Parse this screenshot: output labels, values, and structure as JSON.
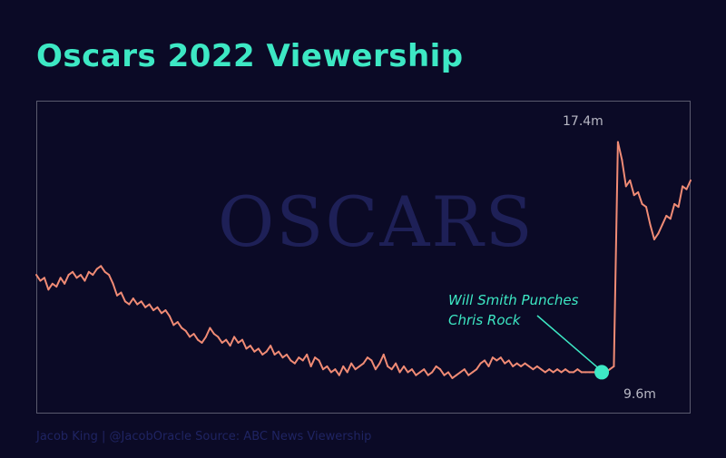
{
  "title": "Oscars 2022 Viewership",
  "watermark": "OSCARS",
  "footer": "Jacob King | @JacobOracle  Source: ABC News Viewership",
  "colors": {
    "background": "#0b0a26",
    "title": "#3de8c4",
    "line": "#f08b75",
    "annotation": "#3de8c4",
    "frame": "#5a5a6e"
  },
  "chart_data": {
    "type": "line",
    "title": "Oscars 2022 Viewership",
    "xlabel": "",
    "ylabel": "",
    "grid": false,
    "legend": "none",
    "ylim": [
      8.2,
      18.8
    ],
    "labels": {
      "max": "17.4m",
      "min": "9.6m"
    },
    "annotation": {
      "lines": [
        "Will Smith Punches",
        "Chris Rock"
      ],
      "point_index": 140
    },
    "values": [
      12.9,
      12.7,
      12.8,
      12.4,
      12.6,
      12.5,
      12.8,
      12.6,
      12.9,
      13.0,
      12.8,
      12.9,
      12.7,
      13.0,
      12.9,
      13.1,
      13.2,
      13.0,
      12.9,
      12.6,
      12.2,
      12.3,
      12.0,
      11.9,
      12.1,
      11.9,
      12.0,
      11.8,
      11.9,
      11.7,
      11.8,
      11.6,
      11.7,
      11.5,
      11.2,
      11.3,
      11.1,
      11.0,
      10.8,
      10.9,
      10.7,
      10.6,
      10.8,
      11.1,
      10.9,
      10.8,
      10.6,
      10.7,
      10.5,
      10.8,
      10.6,
      10.7,
      10.4,
      10.5,
      10.3,
      10.4,
      10.2,
      10.3,
      10.5,
      10.2,
      10.3,
      10.1,
      10.2,
      10.0,
      9.9,
      10.1,
      10.0,
      10.2,
      9.8,
      10.1,
      10.0,
      9.7,
      9.8,
      9.6,
      9.7,
      9.5,
      9.8,
      9.6,
      9.9,
      9.7,
      9.8,
      9.9,
      10.1,
      10.0,
      9.7,
      9.9,
      10.2,
      9.8,
      9.7,
      9.9,
      9.6,
      9.8,
      9.6,
      9.7,
      9.5,
      9.6,
      9.7,
      9.5,
      9.6,
      9.8,
      9.7,
      9.5,
      9.6,
      9.4,
      9.5,
      9.6,
      9.7,
      9.5,
      9.6,
      9.7,
      9.9,
      10.0,
      9.8,
      10.1,
      10.0,
      10.1,
      9.9,
      10.0,
      9.8,
      9.9,
      9.8,
      9.9,
      9.8,
      9.7,
      9.8,
      9.7,
      9.6,
      9.7,
      9.6,
      9.7,
      9.6,
      9.7,
      9.6,
      9.6,
      9.7,
      9.6,
      9.6,
      9.6,
      9.6,
      9.6,
      9.6,
      9.6,
      9.7,
      9.8,
      17.4,
      16.8,
      15.9,
      16.1,
      15.6,
      15.7,
      15.3,
      15.2,
      14.6,
      14.1,
      14.3,
      14.6,
      14.9,
      14.8,
      15.3,
      15.2,
      15.9,
      15.8,
      16.1
    ]
  }
}
